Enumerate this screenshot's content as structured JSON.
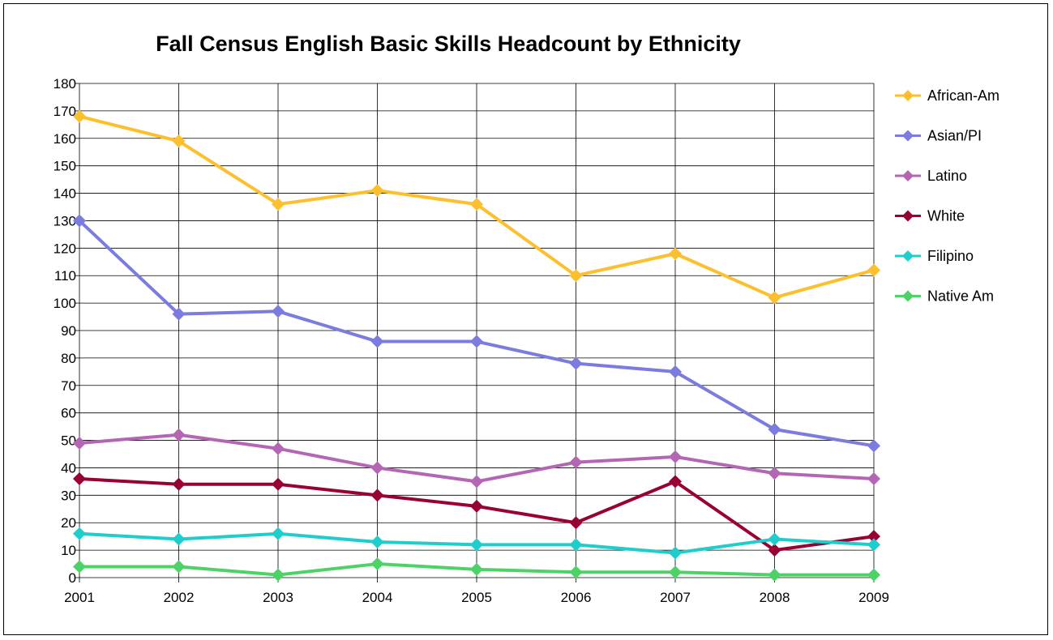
{
  "chart_data": {
    "type": "line",
    "title": "Fall Census English Basic Skills Headcount by Ethnicity",
    "xlabel": "",
    "ylabel": "",
    "x": [
      "2001",
      "2002",
      "2003",
      "2004",
      "2005",
      "2006",
      "2007",
      "2008",
      "2009"
    ],
    "ylim": [
      0,
      180
    ],
    "yticks": [
      0,
      10,
      20,
      30,
      40,
      50,
      60,
      70,
      80,
      90,
      100,
      110,
      120,
      130,
      140,
      150,
      160,
      170,
      180
    ],
    "grid": true,
    "legend": "right",
    "series": [
      {
        "name": "African-Am",
        "color": "#FDBF2D",
        "values": [
          168,
          159,
          136,
          141,
          136,
          110,
          118,
          102,
          112
        ]
      },
      {
        "name": "Asian/PI",
        "color": "#7B7BE0",
        "values": [
          130,
          96,
          97,
          86,
          86,
          78,
          75,
          54,
          48
        ]
      },
      {
        "name": "Latino",
        "color": "#B466B4",
        "values": [
          49,
          52,
          47,
          40,
          35,
          42,
          44,
          38,
          36
        ]
      },
      {
        "name": "White",
        "color": "#990033",
        "values": [
          36,
          34,
          34,
          30,
          26,
          20,
          35,
          10,
          15
        ]
      },
      {
        "name": "Filipino",
        "color": "#1FCDCD",
        "values": [
          16,
          14,
          16,
          13,
          12,
          12,
          9,
          14,
          12
        ]
      },
      {
        "name": "Native Am",
        "color": "#4DD266",
        "values": [
          4,
          4,
          1,
          5,
          3,
          2,
          2,
          1,
          1
        ]
      }
    ]
  }
}
